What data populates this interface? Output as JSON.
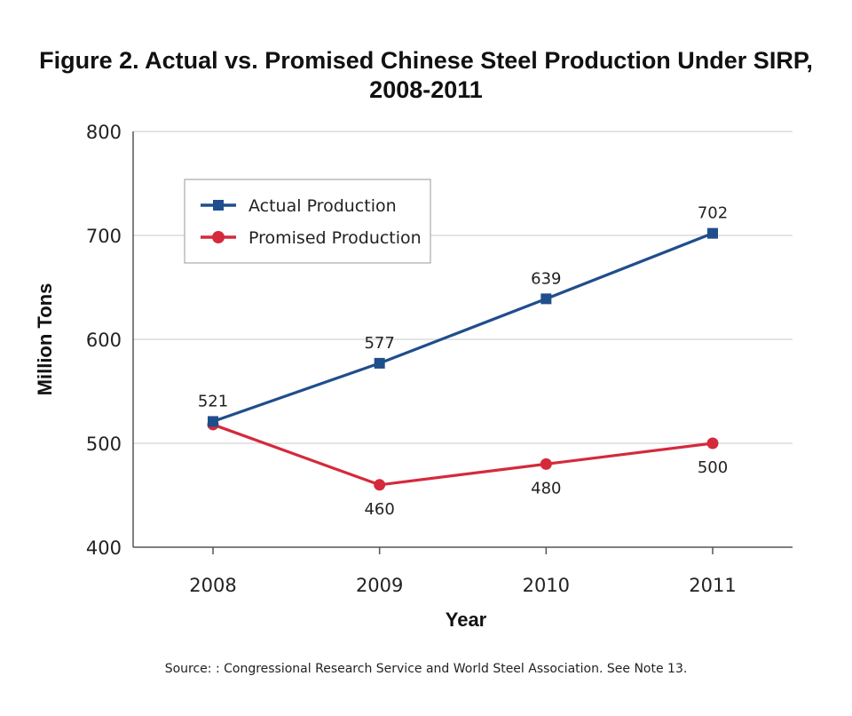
{
  "chart_data": {
    "type": "line",
    "title_line1": "Figure 2. Actual vs. Promised Chinese Steel Production Under SIRP,",
    "title_line2": "2008-2011",
    "xlabel": "Year",
    "ylabel": "Million Tons",
    "categories": [
      "2008",
      "2009",
      "2010",
      "2011"
    ],
    "ylim": [
      400,
      800
    ],
    "yticks": [
      "400",
      "500",
      "600",
      "700",
      "800"
    ],
    "grid": true,
    "legend_position": "top-left",
    "series": [
      {
        "name": "Actual Production",
        "color": "#1f4e8c",
        "marker": "square",
        "values": [
          521,
          577,
          639,
          702
        ],
        "labels": [
          "521",
          "577",
          "639",
          "702"
        ]
      },
      {
        "name": "Promised Production",
        "color": "#d42a3c",
        "marker": "circle",
        "values": [
          518,
          460,
          480,
          500
        ],
        "labels": [
          "",
          "460",
          "480",
          "500"
        ]
      }
    ],
    "source": "Source: : Congressional Research Service and World Steel Association.  See Note 13."
  }
}
